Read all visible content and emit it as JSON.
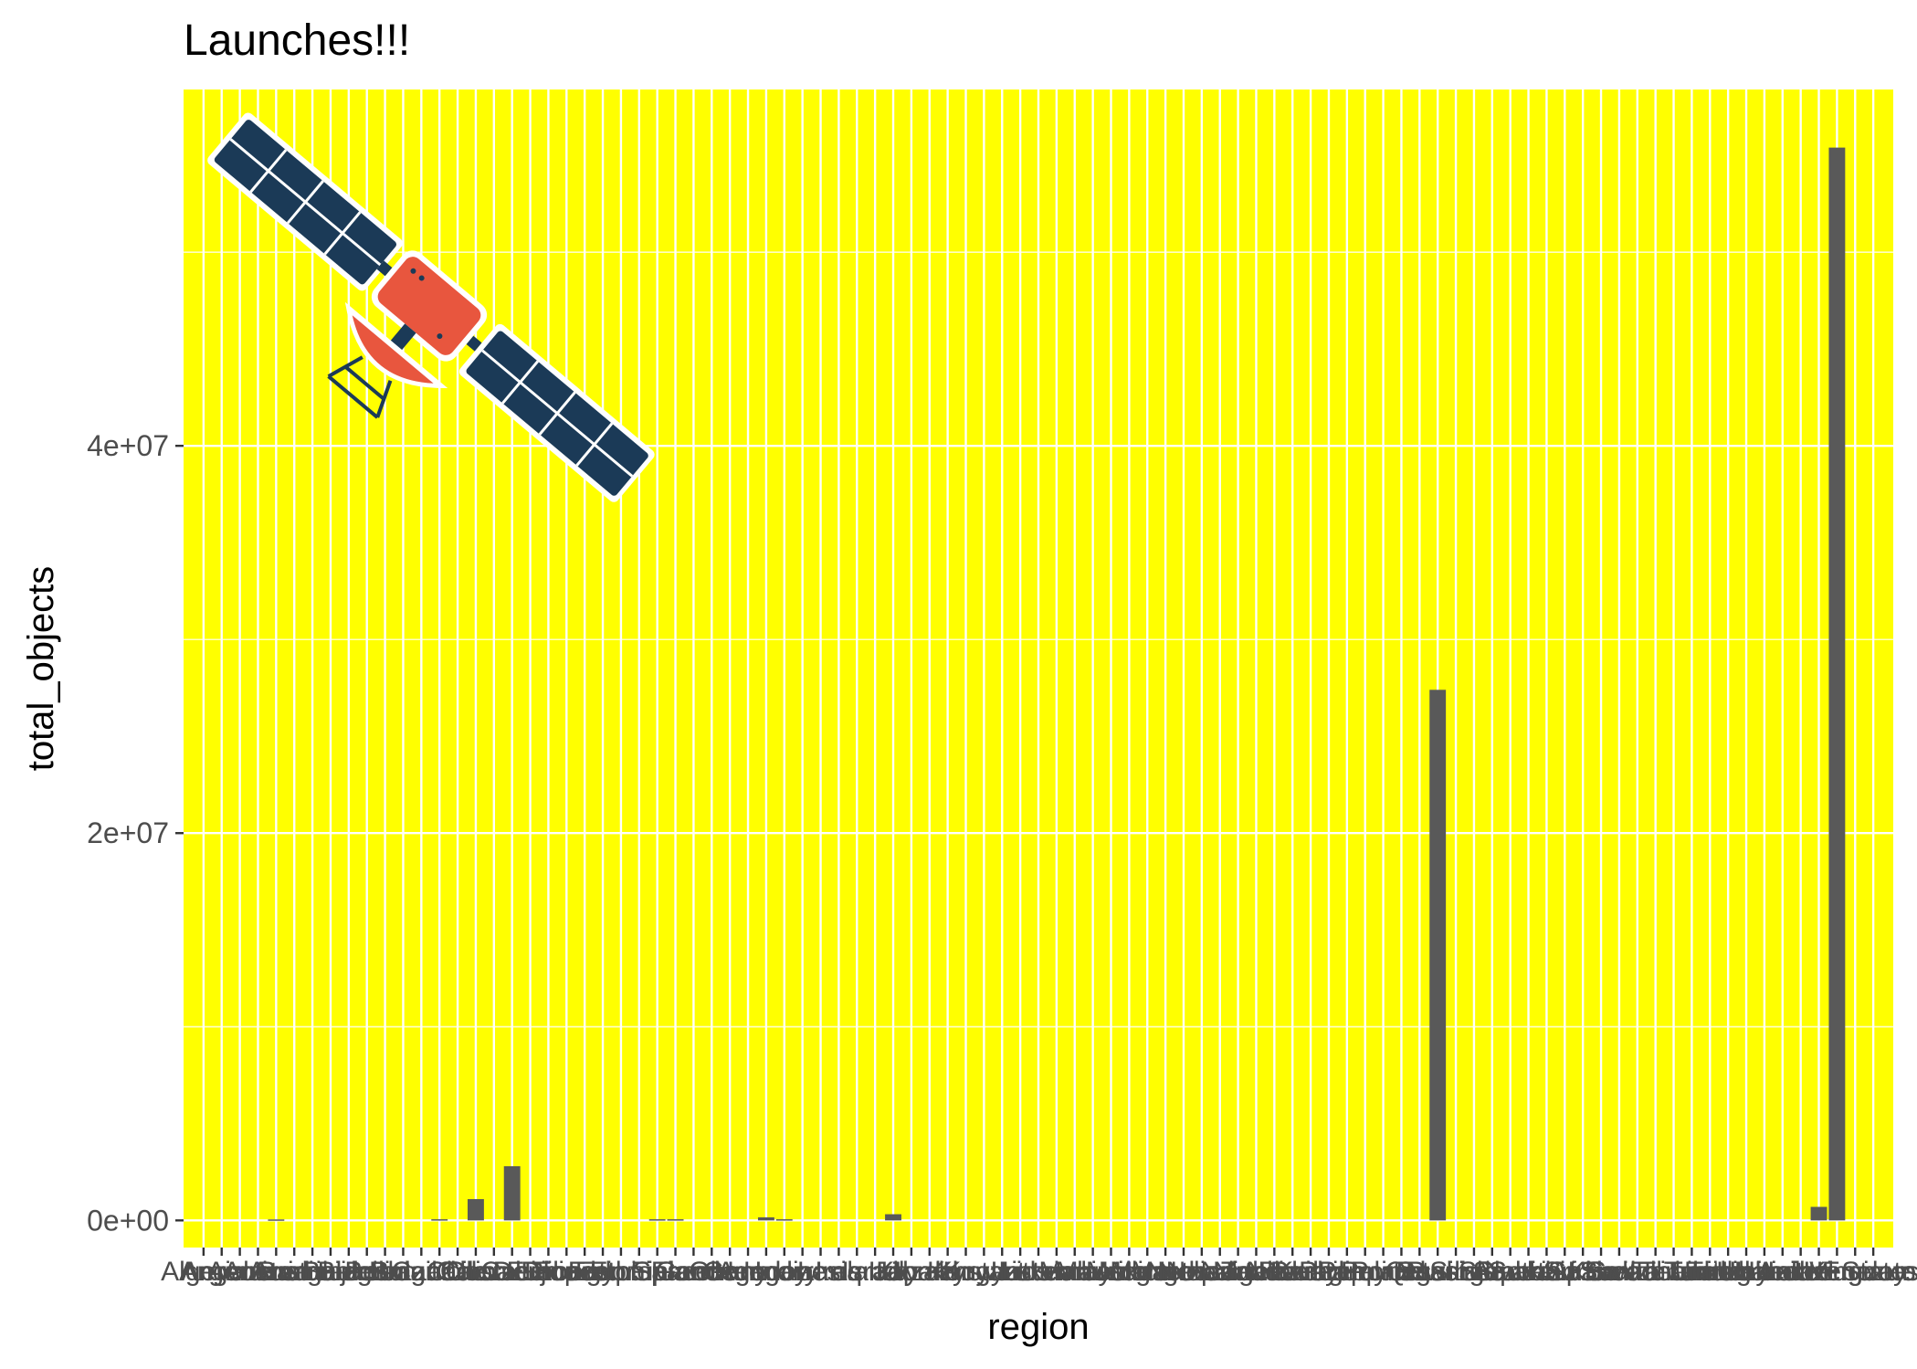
{
  "chart_data": {
    "type": "bar",
    "title": "Launches!!!",
    "xlabel": "region",
    "ylabel": "total_objects",
    "ylim": [
      -1400000,
      58400000
    ],
    "y_ticks": [
      0,
      20000000,
      40000000
    ],
    "y_tick_labels": [
      "0e+00",
      "2e+07",
      "4e+07"
    ],
    "y_minor_ticks": [
      10000000,
      30000000,
      50000000
    ],
    "category_count": 93,
    "categories": [
      "Algeria",
      "Angola",
      "Argentina",
      "Armenia",
      "Australia",
      "Austria",
      "Azerbaijan",
      "Bangladesh",
      "Belarus",
      "Belgium",
      "Bolivia",
      "Brazil",
      "Bulgaria",
      "Canada",
      "Chile",
      "China",
      "Colombia",
      "Costa Rica",
      "Czechia",
      "Denmark",
      "Djibouti",
      "Ecuador",
      "Egypt",
      "Estonia",
      "Ethiopia",
      "European Space Agency",
      "Finland",
      "France",
      "Germany",
      "Ghana",
      "Greece",
      "Hungary",
      "India",
      "Indonesia",
      "Iran",
      "Iraq",
      "Ireland",
      "Israel",
      "Italy",
      "Japan",
      "Jordan",
      "Kazakhstan",
      "Kenya",
      "Kuwait",
      "Kyrgyzstan",
      "Laos",
      "Latvia",
      "Lithuania",
      "Luxembourg",
      "Malaysia",
      "Mauritius",
      "Mexico",
      "Monaco",
      "Mongolia",
      "Morocco",
      "Nepal",
      "Netherlands",
      "New Zealand",
      "Nigeria",
      "North Korea",
      "Norway",
      "Pakistan",
      "Paraguay",
      "Peru",
      "Philippines",
      "Poland",
      "Portugal",
      "Qatar",
      "Russia",
      "Rwanda",
      "Saudi Arabia",
      "Singapore",
      "Slovakia",
      "Slovenia",
      "South Africa",
      "South Korea",
      "Spain",
      "Sri Lanka",
      "Sudan",
      "Sweden",
      "Switzerland",
      "Taiwan",
      "Thailand",
      "Tunisia",
      "Turkey",
      "Turkmenistan",
      "Uganda",
      "Ukraine",
      "United Arab Emirates",
      "United Kingdom",
      "United States",
      "Uruguay",
      "Venezuela"
    ],
    "values": [
      0,
      0,
      0,
      0,
      50000,
      0,
      0,
      0,
      0,
      0,
      0,
      0,
      0,
      60000,
      0,
      1100000,
      0,
      2800000,
      0,
      0,
      0,
      0,
      0,
      0,
      0,
      60000,
      60000,
      0,
      0,
      0,
      0,
      160000,
      60000,
      0,
      0,
      0,
      0,
      0,
      320000,
      0,
      0,
      0,
      0,
      0,
      0,
      0,
      0,
      0,
      0,
      0,
      0,
      0,
      0,
      0,
      0,
      0,
      0,
      0,
      0,
      0,
      0,
      0,
      0,
      0,
      0,
      0,
      0,
      0,
      27400000,
      0,
      0,
      0,
      0,
      0,
      0,
      0,
      0,
      0,
      0,
      0,
      0,
      0,
      0,
      0,
      0,
      0,
      0,
      0,
      0,
      700000,
      55400000,
      0,
      0
    ],
    "grid": true,
    "panel_color": "#ffff00",
    "grid_color": "#ffffff",
    "bar_color": "#595959",
    "legend": "none"
  },
  "image": {
    "icon": "satellite-icon",
    "panel_color": "#1b3a57",
    "body_color": "#e8563e"
  }
}
